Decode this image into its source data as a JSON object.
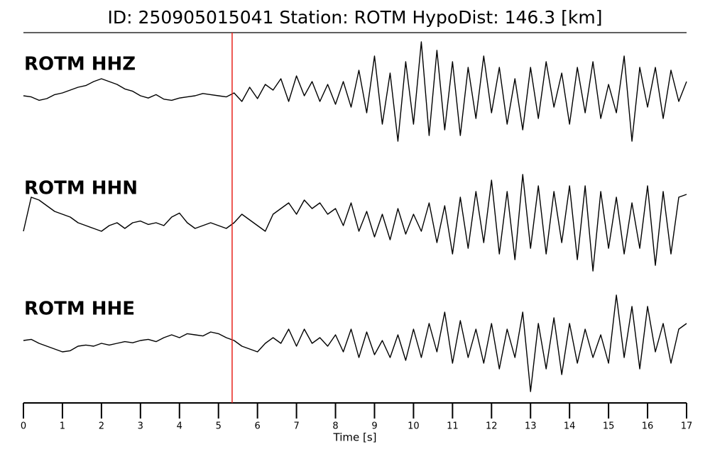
{
  "chart_data": {
    "type": "line",
    "title": "ID: 250905015041   Station: ROTM   HypoDist:   146.3 [km]",
    "xlabel": "Time [s]",
    "xlim": [
      0,
      17
    ],
    "xticks": [
      0,
      1,
      2,
      3,
      4,
      5,
      6,
      7,
      8,
      9,
      10,
      11,
      12,
      13,
      14,
      15,
      16,
      17
    ],
    "ylim": [
      -1,
      1
    ],
    "pick_time": 5.35,
    "pick_color": "#e8221b",
    "label_color": "#4a9a0a",
    "x": [
      0,
      0.2,
      0.4,
      0.6,
      0.8,
      1,
      1.2,
      1.4,
      1.6,
      1.8,
      2,
      2.2,
      2.4,
      2.6,
      2.8,
      3,
      3.2,
      3.4,
      3.6,
      3.8,
      4,
      4.2,
      4.4,
      4.6,
      4.8,
      5,
      5.2,
      5.4,
      5.6,
      5.8,
      6,
      6.2,
      6.4,
      6.6,
      6.8,
      7,
      7.2,
      7.4,
      7.6,
      7.8,
      8,
      8.2,
      8.4,
      8.6,
      8.8,
      9,
      9.2,
      9.4,
      9.6,
      9.8,
      10,
      10.2,
      10.4,
      10.6,
      10.8,
      11,
      11.2,
      11.4,
      11.6,
      11.8,
      12,
      12.2,
      12.4,
      12.6,
      12.8,
      13,
      13.2,
      13.4,
      13.6,
      13.8,
      14,
      14.2,
      14.4,
      14.6,
      14.8,
      15,
      15.2,
      15.4,
      15.6,
      15.8,
      16,
      16.2,
      16.4,
      16.6,
      16.8,
      17
    ],
    "series": [
      {
        "name": "ROTM HHZ",
        "color": "#000000",
        "values": [
          0,
          -0.02,
          -0.08,
          -0.05,
          0.02,
          0.05,
          0.1,
          0.15,
          0.18,
          0.25,
          0.3,
          0.25,
          0.2,
          0.12,
          0.08,
          0,
          -0.04,
          0.02,
          -0.06,
          -0.08,
          -0.04,
          -0.02,
          0,
          0.04,
          0.02,
          0,
          -0.02,
          0.05,
          -0.1,
          0.15,
          -0.05,
          0.2,
          0.1,
          0.3,
          -0.1,
          0.35,
          0,
          0.25,
          -0.1,
          0.2,
          -0.15,
          0.25,
          -0.2,
          0.45,
          -0.3,
          0.7,
          -0.5,
          0.4,
          -0.8,
          0.6,
          -0.5,
          0.95,
          -0.7,
          0.8,
          -0.6,
          0.6,
          -0.7,
          0.5,
          -0.4,
          0.7,
          -0.3,
          0.5,
          -0.5,
          0.3,
          -0.6,
          0.5,
          -0.4,
          0.6,
          -0.2,
          0.4,
          -0.5,
          0.5,
          -0.3,
          0.6,
          -0.4,
          0.2,
          -0.3,
          0.7,
          -0.8,
          0.5,
          -0.2,
          0.5,
          -0.4,
          0.45,
          -0.1,
          0.25
        ]
      },
      {
        "name": "ROTM HHN",
        "color": "#000000",
        "values": [
          -0.2,
          0.4,
          0.35,
          0.25,
          0.15,
          0.1,
          0.05,
          -0.05,
          -0.1,
          -0.15,
          -0.2,
          -0.1,
          -0.05,
          -0.15,
          -0.05,
          -0.02,
          -0.08,
          -0.05,
          -0.1,
          0.05,
          0.12,
          -0.05,
          -0.15,
          -0.1,
          -0.05,
          -0.1,
          -0.15,
          -0.05,
          0.1,
          0,
          -0.1,
          -0.2,
          0.1,
          0.2,
          0.3,
          0.1,
          0.35,
          0.2,
          0.3,
          0.1,
          0.2,
          -0.1,
          0.3,
          -0.2,
          0.15,
          -0.3,
          0.1,
          -0.35,
          0.2,
          -0.25,
          0.1,
          -0.2,
          0.3,
          -0.4,
          0.25,
          -0.6,
          0.4,
          -0.5,
          0.5,
          -0.4,
          0.7,
          -0.6,
          0.5,
          -0.7,
          0.8,
          -0.5,
          0.6,
          -0.6,
          0.5,
          -0.4,
          0.6,
          -0.7,
          0.6,
          -0.9,
          0.5,
          -0.5,
          0.4,
          -0.6,
          0.3,
          -0.5,
          0.6,
          -0.8,
          0.5,
          -0.6,
          0.4,
          0.45
        ]
      },
      {
        "name": "ROTM HHE",
        "color": "#000000",
        "values": [
          0,
          0.02,
          -0.05,
          -0.1,
          -0.15,
          -0.2,
          -0.18,
          -0.1,
          -0.08,
          -0.1,
          -0.05,
          -0.08,
          -0.05,
          -0.02,
          -0.04,
          0,
          0.02,
          -0.02,
          0.05,
          0.1,
          0.05,
          0.12,
          0.1,
          0.08,
          0.15,
          0.12,
          0.05,
          0,
          -0.1,
          -0.15,
          -0.2,
          -0.05,
          0.05,
          -0.05,
          0.2,
          -0.1,
          0.2,
          -0.05,
          0.05,
          -0.1,
          0.1,
          -0.2,
          0.2,
          -0.3,
          0.15,
          -0.25,
          0,
          -0.3,
          0.1,
          -0.35,
          0.2,
          -0.3,
          0.3,
          -0.2,
          0.5,
          -0.4,
          0.35,
          -0.3,
          0.2,
          -0.4,
          0.3,
          -0.5,
          0.2,
          -0.3,
          0.5,
          -0.9,
          0.3,
          -0.5,
          0.4,
          -0.6,
          0.3,
          -0.4,
          0.2,
          -0.3,
          0.1,
          -0.4,
          0.8,
          -0.3,
          0.6,
          -0.5,
          0.6,
          -0.2,
          0.3,
          -0.4,
          0.2,
          0.3
        ]
      }
    ]
  }
}
